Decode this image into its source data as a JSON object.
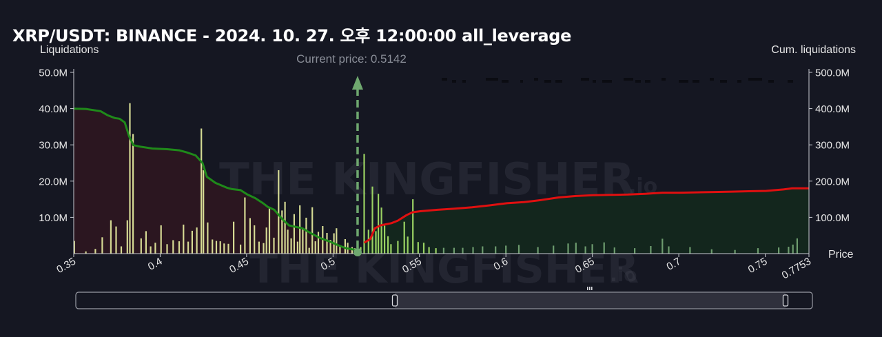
{
  "title": "XRP/USDT: BINANCE - 2024. 10. 27. 오후 12:00:00 all_leverage",
  "watermark": {
    "text": "THE KINGFISHER",
    "suffix": ".io"
  },
  "chart_data": {
    "type": "bar",
    "left_axis_label": "Liquidations",
    "right_axis_label": "Cum. liquidations",
    "x_axis_label": "Price",
    "current_price_label": "Current price: 0.5142",
    "current_price": 0.5142,
    "xlim": [
      0.35,
      0.7753
    ],
    "ylim_left": [
      0,
      50000000
    ],
    "ylim_right": [
      0,
      500000000
    ],
    "x_ticks": [
      {
        "v": 0.35,
        "label": "0.35"
      },
      {
        "v": 0.4,
        "label": "0.4"
      },
      {
        "v": 0.45,
        "label": "0.45"
      },
      {
        "v": 0.5,
        "label": "0.5"
      },
      {
        "v": 0.55,
        "label": "0.55"
      },
      {
        "v": 0.6,
        "label": "0.6"
      },
      {
        "v": 0.65,
        "label": "0.65"
      },
      {
        "v": 0.7,
        "label": "0.7"
      },
      {
        "v": 0.75,
        "label": "0.75"
      },
      {
        "v": 0.7753,
        "label": "0.7753"
      }
    ],
    "y_left_ticks": [
      {
        "v": 10000000,
        "label": "10.0M"
      },
      {
        "v": 20000000,
        "label": "20.0M"
      },
      {
        "v": 30000000,
        "label": "30.0M"
      },
      {
        "v": 40000000,
        "label": "40.0M"
      },
      {
        "v": 50000000,
        "label": "50.0M"
      }
    ],
    "y_right_ticks": [
      {
        "v": 100000000,
        "label": "100.0M"
      },
      {
        "v": 200000000,
        "label": "200.0M"
      },
      {
        "v": 300000000,
        "label": "300.0M"
      },
      {
        "v": 400000000,
        "label": "400.0M"
      },
      {
        "v": 500000000,
        "label": "500.0M"
      }
    ],
    "long_liquidation_bars": [
      [
        0.3503,
        3500000
      ],
      [
        0.357,
        600000
      ],
      [
        0.3625,
        1300000
      ],
      [
        0.3665,
        4500000
      ],
      [
        0.3715,
        9200000
      ],
      [
        0.3745,
        7500000
      ],
      [
        0.3775,
        2000000
      ],
      [
        0.381,
        9200000
      ],
      [
        0.3825,
        41500000
      ],
      [
        0.3843,
        33000000
      ],
      [
        0.389,
        4200000
      ],
      [
        0.3918,
        6200000
      ],
      [
        0.3945,
        2000000
      ],
      [
        0.3972,
        3000000
      ],
      [
        0.4005,
        7800000
      ],
      [
        0.404,
        2600000
      ],
      [
        0.4075,
        3700000
      ],
      [
        0.411,
        3400000
      ],
      [
        0.4135,
        8000000
      ],
      [
        0.4162,
        3300000
      ],
      [
        0.4185,
        6300000
      ],
      [
        0.4212,
        7200000
      ],
      [
        0.4238,
        34500000
      ],
      [
        0.425,
        23000000
      ],
      [
        0.4275,
        8600000
      ],
      [
        0.4302,
        3900000
      ],
      [
        0.4325,
        3500000
      ],
      [
        0.4348,
        3400000
      ],
      [
        0.437,
        2800000
      ],
      [
        0.4395,
        2700000
      ],
      [
        0.4425,
        8800000
      ],
      [
        0.4465,
        2500000
      ],
      [
        0.449,
        15500000
      ],
      [
        0.452,
        9800000
      ],
      [
        0.4545,
        7800000
      ],
      [
        0.4572,
        3300000
      ],
      [
        0.4598,
        2900000
      ],
      [
        0.4615,
        7200000
      ],
      [
        0.4632,
        12800000
      ],
      [
        0.4658,
        4400000
      ],
      [
        0.4685,
        23000000
      ],
      [
        0.4705,
        11900000
      ],
      [
        0.4722,
        14300000
      ],
      [
        0.4738,
        6600000
      ],
      [
        0.4758,
        4200000
      ],
      [
        0.4775,
        10900000
      ],
      [
        0.4795,
        3300000
      ],
      [
        0.4808,
        13300000
      ],
      [
        0.4825,
        6800000
      ],
      [
        0.4845,
        9900000
      ],
      [
        0.4862,
        1600000
      ],
      [
        0.488,
        12800000
      ],
      [
        0.4898,
        3400000
      ],
      [
        0.4915,
        6000000
      ],
      [
        0.494,
        7600000
      ],
      [
        0.4965,
        5700000
      ],
      [
        0.4985,
        3800000
      ],
      [
        0.5005,
        5600000
      ],
      [
        0.502,
        7000000
      ],
      [
        0.504,
        2000000
      ],
      [
        0.507,
        4000000
      ],
      [
        0.5085,
        3000000
      ],
      [
        0.511,
        1800000
      ],
      [
        0.5125,
        1500000
      ]
    ],
    "short_liquidation_bars": [
      [
        0.516,
        1800000
      ],
      [
        0.518,
        27500000
      ],
      [
        0.5205,
        6600000
      ],
      [
        0.5228,
        18500000
      ],
      [
        0.5248,
        6200000
      ],
      [
        0.5262,
        16500000
      ],
      [
        0.528,
        12700000
      ],
      [
        0.5298,
        7700000
      ],
      [
        0.5318,
        4800000
      ],
      [
        0.5335,
        2600000
      ],
      [
        0.5375,
        3500000
      ],
      [
        0.5412,
        8800000
      ],
      [
        0.5432,
        4700000
      ],
      [
        0.5462,
        15000000
      ],
      [
        0.5492,
        3200000
      ],
      [
        0.5525,
        3000000
      ],
      [
        0.5555,
        1800000
      ],
      [
        0.5595,
        1500000
      ],
      [
        0.564,
        1600000
      ],
      [
        0.57,
        1600000
      ],
      [
        0.575,
        1600000
      ],
      [
        0.581,
        1800000
      ],
      [
        0.5865,
        2000000
      ],
      [
        0.594,
        2000000
      ],
      [
        0.6,
        2200000
      ],
      [
        0.6075,
        2400000
      ],
      [
        0.6185,
        1800000
      ],
      [
        0.6275,
        2200000
      ],
      [
        0.636,
        2800000
      ],
      [
        0.6405,
        3000000
      ],
      [
        0.646,
        2000000
      ],
      [
        0.65,
        2600000
      ],
      [
        0.6568,
        3100000
      ],
      [
        0.6628,
        1700000
      ],
      [
        0.6745,
        1500000
      ],
      [
        0.6838,
        2100000
      ],
      [
        0.6905,
        4100000
      ],
      [
        0.6942,
        2000000
      ],
      [
        0.7065,
        1800000
      ],
      [
        0.719,
        1200000
      ],
      [
        0.7325,
        1000000
      ],
      [
        0.7458,
        1500000
      ],
      [
        0.7578,
        1700000
      ],
      [
        0.7635,
        1900000
      ],
      [
        0.766,
        2500000
      ],
      [
        0.7685,
        4200000
      ]
    ],
    "cum_long_curve": [
      [
        0.35,
        400000000
      ],
      [
        0.357,
        399000000
      ],
      [
        0.3655,
        393000000
      ],
      [
        0.3695,
        382000000
      ],
      [
        0.3738,
        374000000
      ],
      [
        0.3765,
        372000000
      ],
      [
        0.3795,
        362000000
      ],
      [
        0.382,
        324000000
      ],
      [
        0.3845,
        299000000
      ],
      [
        0.3885,
        295000000
      ],
      [
        0.3955,
        290000000
      ],
      [
        0.404,
        288000000
      ],
      [
        0.411,
        285000000
      ],
      [
        0.4155,
        279000000
      ],
      [
        0.4205,
        271000000
      ],
      [
        0.4245,
        250000000
      ],
      [
        0.427,
        212000000
      ],
      [
        0.432,
        195000000
      ],
      [
        0.4385,
        182000000
      ],
      [
        0.4415,
        178000000
      ],
      [
        0.4465,
        175000000
      ],
      [
        0.4505,
        163000000
      ],
      [
        0.455,
        153000000
      ],
      [
        0.4598,
        138000000
      ],
      [
        0.4622,
        129000000
      ],
      [
        0.466,
        121000000
      ],
      [
        0.4705,
        96000000
      ],
      [
        0.4745,
        78000000
      ],
      [
        0.4782,
        74000000
      ],
      [
        0.4822,
        70000000
      ],
      [
        0.4865,
        58000000
      ],
      [
        0.4925,
        43000000
      ],
      [
        0.4988,
        32000000
      ],
      [
        0.503,
        23000000
      ],
      [
        0.5075,
        15000000
      ],
      [
        0.511,
        12000000
      ],
      [
        0.5142,
        10000000
      ]
    ],
    "cum_short_curve": [
      [
        0.518,
        30000000
      ],
      [
        0.5215,
        40000000
      ],
      [
        0.5242,
        70000000
      ],
      [
        0.5275,
        78000000
      ],
      [
        0.5338,
        84000000
      ],
      [
        0.5375,
        91000000
      ],
      [
        0.5425,
        106000000
      ],
      [
        0.546,
        114000000
      ],
      [
        0.5505,
        117000000
      ],
      [
        0.5605,
        121000000
      ],
      [
        0.5705,
        124000000
      ],
      [
        0.5805,
        128000000
      ],
      [
        0.5905,
        133000000
      ],
      [
        0.6005,
        139000000
      ],
      [
        0.6105,
        142000000
      ],
      [
        0.6205,
        148000000
      ],
      [
        0.6305,
        155000000
      ],
      [
        0.6405,
        159000000
      ],
      [
        0.6505,
        161000000
      ],
      [
        0.6605,
        162000000
      ],
      [
        0.6705,
        163000000
      ],
      [
        0.6805,
        165000000
      ],
      [
        0.6905,
        168000000
      ],
      [
        0.7005,
        168000000
      ],
      [
        0.7105,
        169000000
      ],
      [
        0.7205,
        170000000
      ],
      [
        0.7305,
        171000000
      ],
      [
        0.7405,
        172000000
      ],
      [
        0.7505,
        173000000
      ],
      [
        0.7605,
        177000000
      ],
      [
        0.7655,
        180000000
      ],
      [
        0.7753,
        180000000
      ]
    ],
    "colors": {
      "background": "#151722",
      "long_curve": "#1f8a1a",
      "long_fill": "#2b1620",
      "short_curve": "#e01010",
      "short_fill": "#13261d",
      "long_bars": "#e8eea0",
      "short_bars_near": "#a8e66a",
      "short_bars_far": "#78a878",
      "current_price_line": "#6fa86f"
    },
    "grid": false,
    "range_selector": {
      "visible_from": 0.35,
      "visible_to": 0.7753
    }
  }
}
